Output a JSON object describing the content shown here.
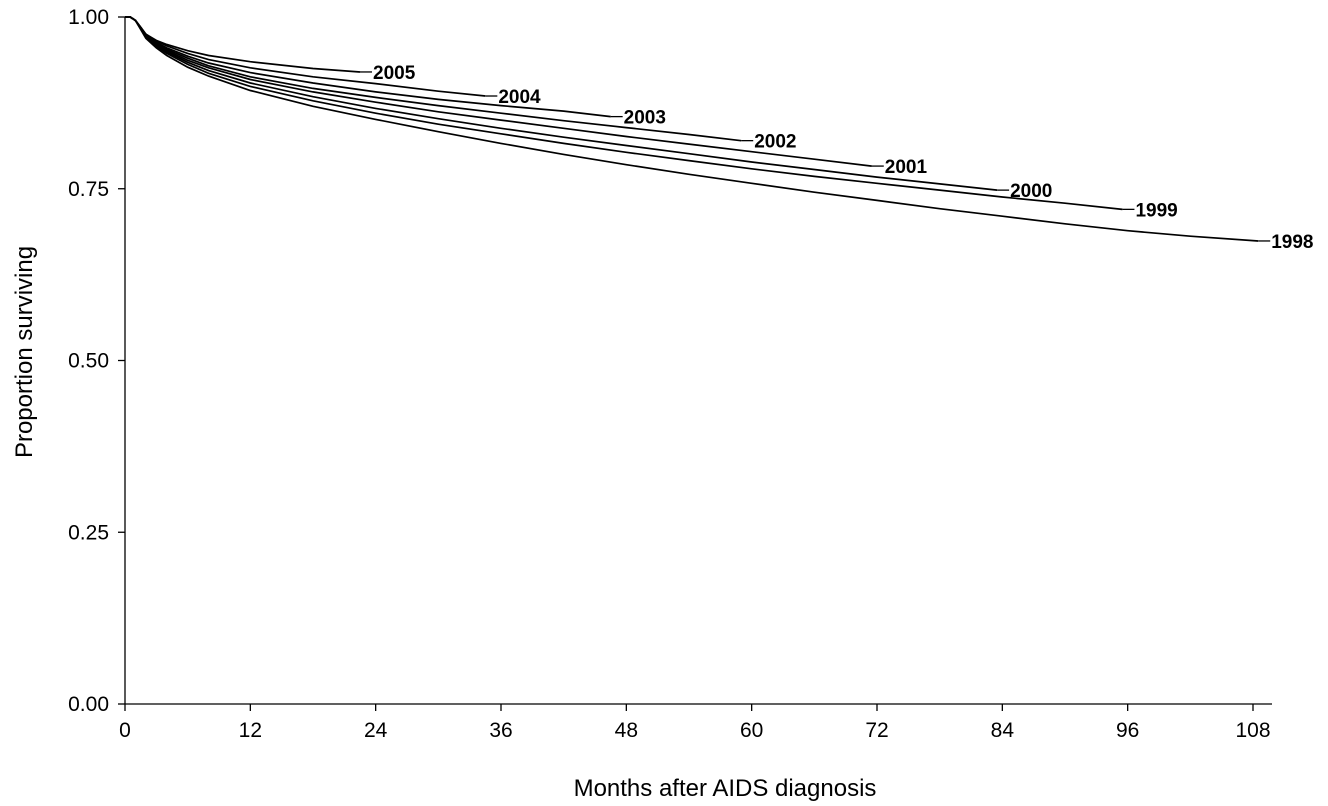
{
  "chart_data": {
    "type": "line",
    "title": "",
    "xlabel": "Months after AIDS diagnosis",
    "ylabel": "Proportion surviving",
    "xlim": [
      0,
      110
    ],
    "ylim": [
      0,
      1
    ],
    "x_ticks": [
      0,
      12,
      24,
      36,
      48,
      60,
      72,
      84,
      96,
      108
    ],
    "x_tick_labels": [
      "0",
      "12",
      "24",
      "36",
      "48",
      "60",
      "72",
      "84",
      "96",
      "108"
    ],
    "y_ticks": [
      0,
      0.25,
      0.5,
      0.75,
      1.0
    ],
    "y_tick_labels": [
      "0.00",
      "0.25",
      "0.50",
      "0.75",
      "1.00"
    ],
    "grid": false,
    "legend": "inline labels at line ends",
    "series": [
      {
        "name": "2005",
        "x": [
          0,
          0.5,
          1,
          1.5,
          2,
          3,
          4,
          6,
          8,
          12,
          18,
          22.5
        ],
        "y": [
          1.0,
          1.0,
          0.995,
          0.985,
          0.975,
          0.966,
          0.96,
          0.951,
          0.944,
          0.935,
          0.925,
          0.92
        ]
      },
      {
        "name": "2004",
        "x": [
          0,
          0.5,
          1,
          1.5,
          2,
          3,
          4,
          6,
          8,
          12,
          18,
          24,
          30,
          34.5
        ],
        "y": [
          1.0,
          1.0,
          0.995,
          0.985,
          0.975,
          0.965,
          0.958,
          0.947,
          0.938,
          0.926,
          0.913,
          0.903,
          0.892,
          0.885
        ]
      },
      {
        "name": "2003",
        "x": [
          0,
          0.5,
          1,
          1.5,
          2,
          3,
          4,
          6,
          8,
          12,
          18,
          24,
          30,
          36,
          42,
          46.5
        ],
        "y": [
          1.0,
          1.0,
          0.995,
          0.985,
          0.974,
          0.963,
          0.955,
          0.943,
          0.933,
          0.919,
          0.904,
          0.891,
          0.88,
          0.871,
          0.863,
          0.855
        ]
      },
      {
        "name": "2002",
        "x": [
          0,
          0.5,
          1,
          1.5,
          2,
          3,
          4,
          6,
          8,
          12,
          18,
          24,
          30,
          36,
          42,
          48,
          54,
          59
        ],
        "y": [
          1.0,
          1.0,
          0.995,
          0.984,
          0.973,
          0.961,
          0.953,
          0.94,
          0.929,
          0.913,
          0.896,
          0.883,
          0.871,
          0.86,
          0.849,
          0.839,
          0.829,
          0.82
        ]
      },
      {
        "name": "2001",
        "x": [
          0,
          0.5,
          1,
          1.5,
          2,
          3,
          4,
          6,
          8,
          12,
          18,
          24,
          30,
          36,
          42,
          48,
          54,
          60,
          66,
          71.5
        ],
        "y": [
          1.0,
          1.0,
          0.995,
          0.984,
          0.972,
          0.96,
          0.951,
          0.937,
          0.926,
          0.909,
          0.891,
          0.876,
          0.862,
          0.85,
          0.838,
          0.826,
          0.815,
          0.804,
          0.793,
          0.783
        ]
      },
      {
        "name": "2000",
        "x": [
          0,
          0.5,
          1,
          1.5,
          2,
          3,
          4,
          6,
          8,
          12,
          18,
          24,
          30,
          36,
          42,
          48,
          54,
          60,
          66,
          72,
          78,
          83.5
        ],
        "y": [
          1.0,
          1.0,
          0.995,
          0.983,
          0.971,
          0.958,
          0.949,
          0.934,
          0.922,
          0.904,
          0.884,
          0.867,
          0.852,
          0.838,
          0.825,
          0.813,
          0.801,
          0.789,
          0.778,
          0.767,
          0.757,
          0.748
        ]
      },
      {
        "name": "1999",
        "x": [
          0,
          0.5,
          1,
          1.5,
          2,
          3,
          4,
          6,
          8,
          12,
          18,
          24,
          30,
          36,
          42,
          48,
          54,
          60,
          66,
          72,
          78,
          84,
          90,
          95.5
        ],
        "y": [
          1.0,
          1.0,
          0.995,
          0.983,
          0.97,
          0.957,
          0.947,
          0.931,
          0.918,
          0.899,
          0.878,
          0.86,
          0.844,
          0.83,
          0.816,
          0.803,
          0.791,
          0.779,
          0.768,
          0.758,
          0.748,
          0.738,
          0.729,
          0.72
        ]
      },
      {
        "name": "1998",
        "x": [
          0,
          0.5,
          1,
          1.5,
          2,
          3,
          4,
          6,
          8,
          12,
          18,
          24,
          30,
          36,
          42,
          48,
          54,
          60,
          66,
          72,
          78,
          84,
          90,
          96,
          102,
          108.5
        ],
        "y": [
          1.0,
          1.0,
          0.995,
          0.982,
          0.969,
          0.955,
          0.944,
          0.927,
          0.914,
          0.893,
          0.87,
          0.851,
          0.833,
          0.816,
          0.8,
          0.785,
          0.771,
          0.758,
          0.745,
          0.733,
          0.721,
          0.71,
          0.699,
          0.689,
          0.681,
          0.674
        ]
      }
    ]
  }
}
